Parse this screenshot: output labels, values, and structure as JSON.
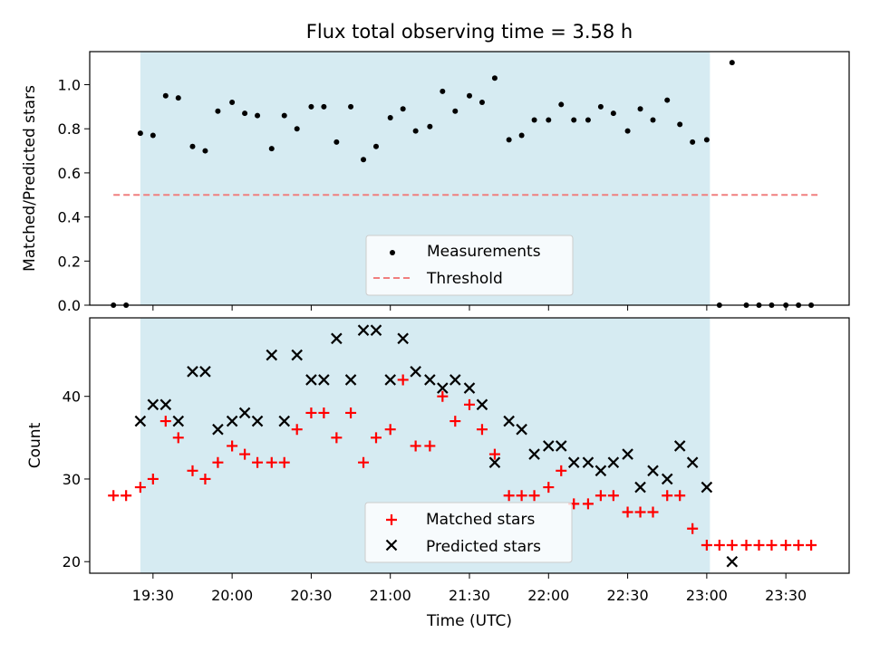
{
  "title": "Flux total observing time = 3.58 h",
  "colors": {
    "measurement": "#000000",
    "threshold": "#f07f7f",
    "matched": "#ff0000",
    "predicted": "#000000",
    "span": "#add8e6"
  },
  "chart_data": [
    {
      "type": "scatter",
      "ylabel": "Matched/Predicted stars",
      "xlim": [
        19.1,
        23.9
      ],
      "ylim": [
        0.0,
        1.15
      ],
      "yticks": [
        "0.0",
        "0.2",
        "0.4",
        "0.6",
        "0.8",
        "1.0"
      ],
      "threshold": 0.5,
      "threshold_x": [
        19.25,
        23.7
      ],
      "span": [
        19.42,
        23.02
      ],
      "legend": {
        "position": "bottom-center",
        "entries": [
          "Measurements",
          "Threshold"
        ]
      },
      "series": [
        {
          "name": "Measurements",
          "x": [
            19.25,
            19.33,
            19.42,
            19.5,
            19.58,
            19.66,
            19.75,
            19.83,
            19.91,
            20.0,
            20.08,
            20.16,
            20.25,
            20.33,
            20.41,
            20.5,
            20.58,
            20.66,
            20.75,
            20.83,
            20.91,
            21.0,
            21.08,
            21.16,
            21.25,
            21.33,
            21.41,
            21.5,
            21.58,
            21.66,
            21.75,
            21.83,
            21.91,
            22.0,
            22.08,
            22.16,
            22.25,
            22.33,
            22.41,
            22.5,
            22.58,
            22.66,
            22.75,
            22.83,
            22.91,
            23.0,
            23.08,
            23.16,
            23.25,
            23.33,
            23.41,
            23.5,
            23.58,
            23.66
          ],
          "y": [
            0.0,
            0.0,
            0.78,
            0.77,
            0.95,
            0.94,
            0.72,
            0.7,
            0.88,
            0.92,
            0.87,
            0.86,
            0.71,
            0.86,
            0.8,
            0.9,
            0.9,
            0.74,
            0.9,
            0.66,
            0.72,
            0.85,
            0.89,
            0.79,
            0.81,
            0.97,
            0.88,
            0.95,
            0.92,
            1.03,
            0.75,
            0.77,
            0.84,
            0.84,
            0.91,
            0.84,
            0.84,
            0.9,
            0.87,
            0.79,
            0.89,
            0.84,
            0.93,
            0.82,
            0.74,
            0.75,
            0.0,
            1.1,
            0.0,
            0.0,
            0.0,
            0.0,
            0.0,
            0.0
          ]
        }
      ]
    },
    {
      "type": "scatter",
      "ylabel": "Count",
      "xlabel": "Time (UTC)",
      "xlim": [
        19.1,
        23.9
      ],
      "ylim": [
        18.6,
        49.5
      ],
      "yticks": [
        "20",
        "30",
        "40"
      ],
      "xticks": [
        "19:30",
        "20:00",
        "20:30",
        "21:00",
        "21:30",
        "22:00",
        "22:30",
        "23:00",
        "23:30"
      ],
      "span": [
        19.42,
        23.02
      ],
      "legend": {
        "position": "bottom-center",
        "entries": [
          "Matched stars",
          "Predicted stars"
        ]
      },
      "series": [
        {
          "name": "Matched stars",
          "x": [
            19.25,
            19.33,
            19.42,
            19.5,
            19.58,
            19.66,
            19.75,
            19.83,
            19.91,
            20.0,
            20.08,
            20.16,
            20.25,
            20.33,
            20.41,
            20.5,
            20.58,
            20.66,
            20.75,
            20.83,
            20.91,
            21.0,
            21.08,
            21.16,
            21.25,
            21.33,
            21.41,
            21.5,
            21.58,
            21.66,
            21.75,
            21.83,
            21.91,
            22.0,
            22.08,
            22.16,
            22.25,
            22.33,
            22.41,
            22.5,
            22.58,
            22.66,
            22.75,
            22.83,
            22.91,
            23.0,
            23.08,
            23.16,
            23.25,
            23.33,
            23.41,
            23.5,
            23.58,
            23.66
          ],
          "y": [
            28,
            28,
            29,
            30,
            37,
            35,
            31,
            30,
            32,
            34,
            33,
            32,
            32,
            32,
            36,
            38,
            38,
            35,
            38,
            32,
            35,
            36,
            42,
            34,
            34,
            40,
            37,
            39,
            36,
            33,
            28,
            28,
            28,
            29,
            31,
            27,
            27,
            28,
            28,
            26,
            26,
            26,
            28,
            28,
            24,
            22,
            22,
            22,
            22,
            22,
            22,
            22,
            22,
            22
          ]
        },
        {
          "name": "Predicted stars",
          "x": [
            19.42,
            19.5,
            19.58,
            19.66,
            19.75,
            19.83,
            19.91,
            20.0,
            20.08,
            20.16,
            20.25,
            20.33,
            20.41,
            20.5,
            20.58,
            20.66,
            20.75,
            20.83,
            20.91,
            21.0,
            21.08,
            21.16,
            21.25,
            21.33,
            21.41,
            21.5,
            21.58,
            21.66,
            21.75,
            21.83,
            21.91,
            22.0,
            22.08,
            22.16,
            22.25,
            22.33,
            22.41,
            22.5,
            22.58,
            22.66,
            22.75,
            22.83,
            22.91,
            23.0,
            23.16
          ],
          "y": [
            37,
            39,
            39,
            37,
            43,
            43,
            36,
            37,
            38,
            37,
            45,
            37,
            45,
            42,
            42,
            47,
            42,
            48,
            48,
            42,
            47,
            43,
            42,
            41,
            42,
            41,
            39,
            32,
            37,
            36,
            33,
            34,
            34,
            32,
            32,
            31,
            32,
            33,
            29,
            31,
            30,
            34,
            32,
            29,
            20
          ]
        }
      ]
    }
  ]
}
